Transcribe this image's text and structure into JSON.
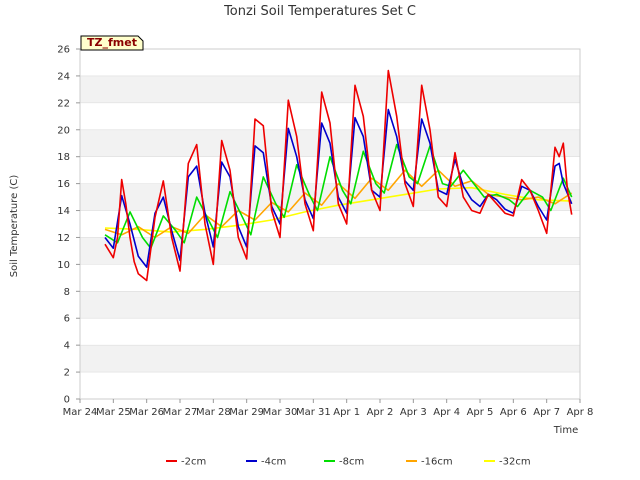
{
  "chart_data": {
    "type": "line",
    "title": "Tonzi Soil Temperatures Set C",
    "xlabel": "Time",
    "ylabel": "Soil Temperature (C)",
    "ylim": [
      0,
      26
    ],
    "yticks": [
      0,
      2,
      4,
      6,
      8,
      10,
      12,
      14,
      16,
      18,
      20,
      22,
      24,
      26
    ],
    "xlim": [
      "Mar 24",
      "Apr 8"
    ],
    "xticks": [
      "Mar 24",
      "Mar 25",
      "Mar 26",
      "Mar 27",
      "Mar 28",
      "Mar 29",
      "Mar 30",
      "Mar 31",
      "Apr 1",
      "Apr 2",
      "Apr 3",
      "Apr 4",
      "Apr 5",
      "Apr 6",
      "Apr 7",
      "Apr 8"
    ],
    "grid": "horizontal bands",
    "legend_position": "bottom",
    "tag_label": "TZ_fmet",
    "series": [
      {
        "name": "-2cm",
        "color": "#ee0000",
        "x": [
          "Mar 24 18:00",
          "Mar 25 00:00",
          "Mar 25 03:00",
          "Mar 25 06:00",
          "Mar 25 09:00",
          "Mar 25 12:00",
          "Mar 25 15:00",
          "Mar 25 18:00",
          "Mar 26 00:00",
          "Mar 26 06:00",
          "Mar 26 12:00",
          "Mar 26 18:00",
          "Mar 27 00:00",
          "Mar 27 06:00",
          "Mar 27 12:00",
          "Mar 27 18:00",
          "Mar 28 00:00",
          "Mar 28 06:00",
          "Mar 28 12:00",
          "Mar 28 18:00",
          "Mar 29 00:00",
          "Mar 29 06:00",
          "Mar 29 12:00",
          "Mar 29 18:00",
          "Mar 30 00:00",
          "Mar 30 06:00",
          "Mar 30 12:00",
          "Mar 30 18:00",
          "Mar 31 00:00",
          "Mar 31 06:00",
          "Mar 31 12:00",
          "Mar 31 18:00",
          "Apr 1 00:00",
          "Apr 1 06:00",
          "Apr 1 12:00",
          "Apr 1 18:00",
          "Apr 2 00:00",
          "Apr 2 06:00",
          "Apr 2 12:00",
          "Apr 2 18:00",
          "Apr 3 00:00",
          "Apr 3 06:00",
          "Apr 3 12:00",
          "Apr 3 18:00",
          "Apr 4 00:00",
          "Apr 4 06:00",
          "Apr 4 12:00",
          "Apr 4 18:00",
          "Apr 5 00:00",
          "Apr 5 06:00",
          "Apr 5 12:00",
          "Apr 5 18:00",
          "Apr 6 00:00",
          "Apr 6 06:00",
          "Apr 6 12:00",
          "Apr 6 18:00",
          "Apr 7 00:00",
          "Apr 7 06:00",
          "Apr 7 09:00",
          "Apr 7 12:00",
          "Apr 7 15:00",
          "Apr 7 18:00"
        ],
        "y": [
          11.5,
          10.5,
          12.0,
          16.3,
          14.5,
          12.0,
          10.2,
          9.3,
          8.8,
          13.5,
          16.2,
          12.0,
          9.5,
          17.5,
          18.9,
          13.0,
          10.0,
          19.2,
          17.0,
          12.0,
          10.4,
          20.8,
          20.3,
          14.0,
          12.0,
          22.2,
          19.5,
          14.5,
          12.5,
          22.8,
          20.5,
          14.5,
          13.0,
          23.3,
          21.0,
          15.5,
          14.0,
          24.4,
          21.0,
          16.0,
          14.3,
          23.3,
          20.0,
          15.0,
          14.3,
          18.3,
          15.0,
          14.0,
          13.8,
          15.2,
          14.5,
          13.8,
          13.6,
          16.3,
          15.5,
          14.0,
          12.3,
          18.7,
          18.0,
          19.0,
          15.5,
          13.7
        ]
      },
      {
        "name": "-4cm",
        "color": "#0000cc",
        "x": [
          "Mar 24 18:00",
          "Mar 25 00:00",
          "Mar 25 06:00",
          "Mar 25 12:00",
          "Mar 25 18:00",
          "Mar 26 00:00",
          "Mar 26 06:00",
          "Mar 26 12:00",
          "Mar 26 18:00",
          "Mar 27 00:00",
          "Mar 27 06:00",
          "Mar 27 12:00",
          "Mar 27 18:00",
          "Mar 28 00:00",
          "Mar 28 06:00",
          "Mar 28 12:00",
          "Mar 28 18:00",
          "Mar 29 00:00",
          "Mar 29 06:00",
          "Mar 29 12:00",
          "Mar 29 18:00",
          "Mar 30 00:00",
          "Mar 30 06:00",
          "Mar 30 12:00",
          "Mar 30 18:00",
          "Mar 31 00:00",
          "Mar 31 06:00",
          "Mar 31 12:00",
          "Mar 31 18:00",
          "Apr 1 00:00",
          "Apr 1 06:00",
          "Apr 1 12:00",
          "Apr 1 18:00",
          "Apr 2 00:00",
          "Apr 2 06:00",
          "Apr 2 12:00",
          "Apr 2 18:00",
          "Apr 3 00:00",
          "Apr 3 06:00",
          "Apr 3 12:00",
          "Apr 3 18:00",
          "Apr 4 00:00",
          "Apr 4 06:00",
          "Apr 4 12:00",
          "Apr 4 18:00",
          "Apr 5 00:00",
          "Apr 5 06:00",
          "Apr 5 12:00",
          "Apr 5 18:00",
          "Apr 6 00:00",
          "Apr 6 06:00",
          "Apr 6 12:00",
          "Apr 6 18:00",
          "Apr 7 00:00",
          "Apr 7 06:00",
          "Apr 7 09:00",
          "Apr 7 12:00",
          "Apr 7 18:00"
        ],
        "y": [
          12.0,
          11.2,
          15.1,
          13.0,
          10.6,
          9.8,
          13.8,
          15.0,
          12.5,
          10.3,
          16.5,
          17.3,
          13.8,
          11.3,
          17.6,
          16.5,
          12.8,
          11.3,
          18.8,
          18.3,
          14.3,
          13.0,
          20.1,
          18.0,
          14.8,
          13.4,
          20.5,
          19.0,
          15.0,
          13.8,
          20.9,
          19.5,
          15.5,
          15.0,
          21.5,
          19.5,
          16.2,
          15.5,
          20.8,
          19.0,
          15.5,
          15.2,
          17.8,
          15.8,
          14.8,
          14.3,
          15.2,
          14.8,
          14.1,
          13.8,
          15.8,
          15.5,
          14.3,
          13.3,
          17.3,
          17.5,
          16.0,
          14.5
        ]
      },
      {
        "name": "-8cm",
        "color": "#00dd00",
        "x": [
          "Mar 24 18:00",
          "Mar 25 03:00",
          "Mar 25 12:00",
          "Mar 25 21:00",
          "Mar 26 03:00",
          "Mar 26 12:00",
          "Mar 26 21:00",
          "Mar 27 03:00",
          "Mar 27 12:00",
          "Mar 27 21:00",
          "Mar 28 03:00",
          "Mar 28 12:00",
          "Mar 28 21:00",
          "Mar 29 03:00",
          "Mar 29 12:00",
          "Mar 29 21:00",
          "Mar 30 03:00",
          "Mar 30 12:00",
          "Mar 30 21:00",
          "Mar 31 03:00",
          "Mar 31 12:00",
          "Mar 31 21:00",
          "Apr 1 03:00",
          "Apr 1 12:00",
          "Apr 1 21:00",
          "Apr 2 03:00",
          "Apr 2 12:00",
          "Apr 2 21:00",
          "Apr 3 03:00",
          "Apr 3 12:00",
          "Apr 3 21:00",
          "Apr 4 03:00",
          "Apr 4 12:00",
          "Apr 4 21:00",
          "Apr 5 03:00",
          "Apr 5 12:00",
          "Apr 5 21:00",
          "Apr 6 03:00",
          "Apr 6 12:00",
          "Apr 6 21:00",
          "Apr 7 03:00",
          "Apr 7 12:00",
          "Apr 7 18:00"
        ],
        "y": [
          12.2,
          11.6,
          13.9,
          12.0,
          11.2,
          13.6,
          12.5,
          11.6,
          15.0,
          13.2,
          12.0,
          15.4,
          13.5,
          12.2,
          16.5,
          14.5,
          13.5,
          17.4,
          15.2,
          14.0,
          18.0,
          15.5,
          14.5,
          18.4,
          16.0,
          15.3,
          18.9,
          16.5,
          16.0,
          18.8,
          16.0,
          15.8,
          17.0,
          15.8,
          15.0,
          15.2,
          14.8,
          14.3,
          15.5,
          15.0,
          14.0,
          16.4,
          15.0
        ]
      },
      {
        "name": "-16cm",
        "color": "#ffa500",
        "x": [
          "Mar 24 18:00",
          "Mar 25 06:00",
          "Mar 25 18:00",
          "Mar 26 06:00",
          "Mar 26 18:00",
          "Mar 27 06:00",
          "Mar 27 18:00",
          "Mar 28 06:00",
          "Mar 28 18:00",
          "Mar 29 06:00",
          "Mar 29 18:00",
          "Mar 30 06:00",
          "Mar 30 18:00",
          "Mar 31 06:00",
          "Mar 31 18:00",
          "Apr 1 06:00",
          "Apr 1 18:00",
          "Apr 2 06:00",
          "Apr 2 18:00",
          "Apr 3 06:00",
          "Apr 3 18:00",
          "Apr 4 06:00",
          "Apr 4 18:00",
          "Apr 5 06:00",
          "Apr 5 18:00",
          "Apr 6 06:00",
          "Apr 6 18:00",
          "Apr 7 06:00",
          "Apr 7 18:00"
        ],
        "y": [
          12.6,
          12.2,
          12.8,
          12.0,
          12.8,
          12.3,
          13.7,
          12.8,
          14.0,
          13.3,
          14.6,
          13.9,
          15.3,
          14.4,
          16.0,
          14.9,
          16.4,
          15.5,
          17.0,
          15.8,
          17.0,
          15.8,
          16.2,
          15.2,
          15.0,
          14.8,
          15.0,
          14.5,
          15.3
        ]
      },
      {
        "name": "-32cm",
        "color": "#ffff00",
        "x": [
          "Mar 24 18:00",
          "Mar 25 18:00",
          "Mar 26 18:00",
          "Mar 27 18:00",
          "Mar 28 18:00",
          "Mar 29 18:00",
          "Mar 30 18:00",
          "Mar 31 18:00",
          "Apr 1 18:00",
          "Apr 2 18:00",
          "Apr 3 18:00",
          "Apr 4 18:00",
          "Apr 5 18:00",
          "Apr 6 18:00",
          "Apr 7 18:00"
        ],
        "y": [
          12.7,
          12.6,
          12.4,
          12.6,
          12.9,
          13.3,
          13.9,
          14.4,
          14.8,
          15.2,
          15.6,
          15.7,
          15.2,
          14.8,
          14.7
        ]
      }
    ]
  }
}
